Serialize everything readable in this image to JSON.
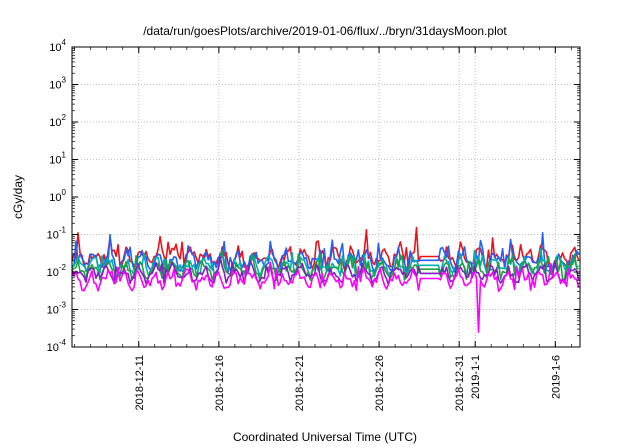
{
  "chart_data": {
    "type": "line",
    "title": "/data/run/goesPlots/archive/2019-01-06/flux/../bryn/31daysMoon.plot",
    "xlabel": "Coordinated Universal Time (UTC)",
    "ylabel": "cGy/day",
    "y_scale": "log",
    "ylim": [
      0.0001,
      10000
    ],
    "xlim": [
      "2018-12-06T20:00",
      "2019-01-07T13:00"
    ],
    "grid": true,
    "legend": "none",
    "y_ticks": [
      {
        "value": 0.0001,
        "base": "10",
        "exp": "-4"
      },
      {
        "value": 0.001,
        "base": "10",
        "exp": "-3"
      },
      {
        "value": 0.01,
        "base": "10",
        "exp": "-2"
      },
      {
        "value": 0.1,
        "base": "10",
        "exp": "-1"
      },
      {
        "value": 1,
        "base": "10",
        "exp": "0"
      },
      {
        "value": 10,
        "base": "10",
        "exp": "1"
      },
      {
        "value": 100,
        "base": "10",
        "exp": "2"
      },
      {
        "value": 1000,
        "base": "10",
        "exp": "3"
      },
      {
        "value": 10000,
        "base": "10",
        "exp": "4"
      }
    ],
    "x_ticks": [
      {
        "date": "2018-12-11",
        "label": "2018-12-11"
      },
      {
        "date": "2018-12-16",
        "label": "2018-12-16"
      },
      {
        "date": "2018-12-21",
        "label": "2018-12-21"
      },
      {
        "date": "2018-12-26",
        "label": "2018-12-26"
      },
      {
        "date": "2018-12-31",
        "label": "2018-12-31"
      },
      {
        "date": "2019-01-01",
        "label": "2019-1-1"
      },
      {
        "date": "2019-01-06",
        "label": "2019-1-6"
      }
    ],
    "gap": [
      "2018-12-28T12:00",
      "2018-12-29T18:00"
    ],
    "minimum_spike": {
      "date": "2019-01-01T04:00",
      "value": 0.00025
    },
    "series": [
      {
        "color": "#e8141c",
        "mean": 0.024,
        "amp": 0.34,
        "spike": 0.6
      },
      {
        "color": "#2060ff",
        "mean": 0.019,
        "amp": 0.32,
        "spike": 0.55
      },
      {
        "color": "#00b0b0",
        "mean": 0.014,
        "amp": 0.3,
        "spike": 0.45
      },
      {
        "color": "#20a040",
        "mean": 0.011,
        "amp": 0.3,
        "spike": 0.4
      },
      {
        "color": "#8020c0",
        "mean": 0.0085,
        "amp": 0.28,
        "spike": 0.38
      },
      {
        "color": "#ff00ff",
        "mean": 0.0062,
        "amp": 0.32,
        "spike": 0.45
      }
    ]
  }
}
